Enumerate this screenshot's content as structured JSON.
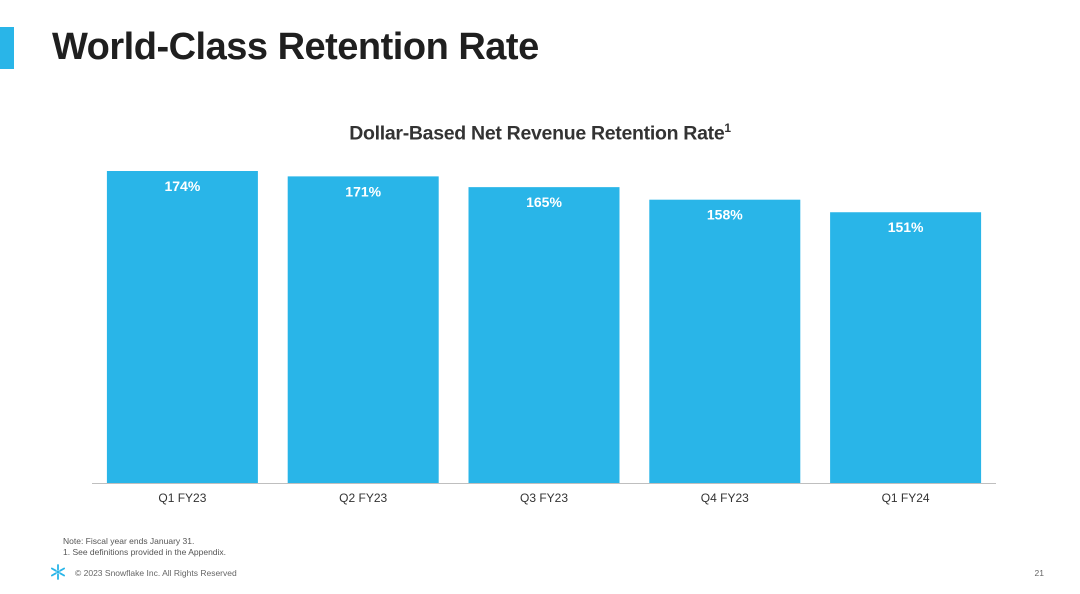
{
  "slide": {
    "title": "World-Class Retention Rate",
    "page_number": "21"
  },
  "footer": {
    "note": "Note: Fiscal year ends January 31.",
    "footnote": "1.  See definitions provided in the Appendix.",
    "copyright": "© 2023 Snowflake Inc. All Rights Reserved",
    "logo_icon": "snowflake-logo-icon"
  },
  "colors": {
    "accent": "#29b5e8",
    "bar": "#29b5e8",
    "bar_label": "#ffffff",
    "title": "#1f1f1f"
  },
  "chart_data": {
    "type": "bar",
    "title": "Dollar-Based Net Revenue Retention Rate",
    "title_superscript": "1",
    "categories": [
      "Q1 FY23",
      "Q2 FY23",
      "Q3 FY23",
      "Q4 FY23",
      "Q1 FY24"
    ],
    "values": [
      174,
      171,
      165,
      158,
      151
    ],
    "data_labels": [
      "174%",
      "171%",
      "165%",
      "158%",
      "151%"
    ],
    "unit": "%",
    "ylim": [
      0,
      174
    ],
    "xlabel": "",
    "ylabel": "",
    "grid": false,
    "legend": "none"
  }
}
